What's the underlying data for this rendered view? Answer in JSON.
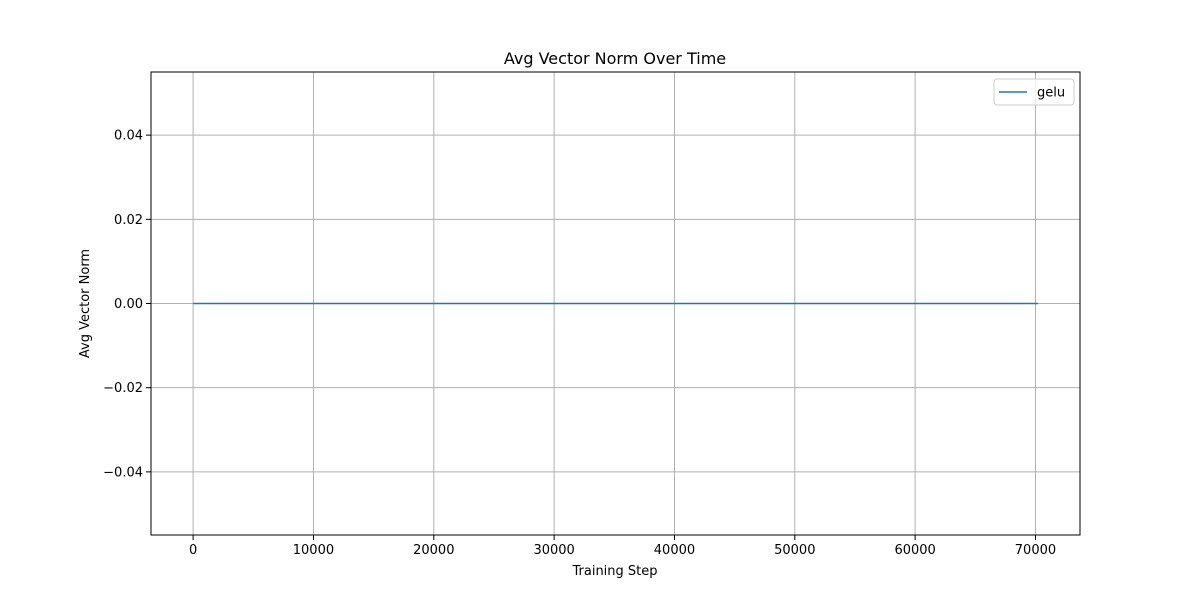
{
  "chart_data": {
    "type": "line",
    "title": "Avg Vector Norm Over Time",
    "xlabel": "Training Step",
    "ylabel": "Avg Vector Norm",
    "xlim": [
      -3500,
      73700
    ],
    "ylim": [
      -0.055,
      0.055
    ],
    "xticks": [
      0,
      10000,
      20000,
      30000,
      40000,
      50000,
      60000,
      70000
    ],
    "xtick_labels": [
      "0",
      "10000",
      "20000",
      "30000",
      "40000",
      "50000",
      "60000",
      "70000"
    ],
    "yticks": [
      -0.04,
      -0.02,
      0.0,
      0.02,
      0.04
    ],
    "ytick_labels": [
      "−0.04",
      "−0.02",
      "0.00",
      "0.02",
      "0.04"
    ],
    "grid": true,
    "legend_position": "upper-right",
    "series": [
      {
        "name": "gelu",
        "color": "#1f77b4",
        "x": [
          0,
          70200
        ],
        "y": [
          0,
          0
        ]
      }
    ]
  }
}
